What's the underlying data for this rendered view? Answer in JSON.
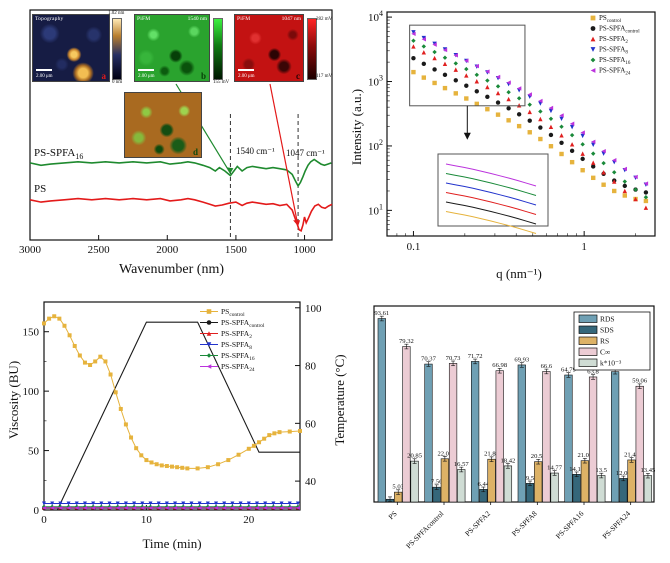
{
  "chart_data": [
    {
      "id": "ftir",
      "type": "line",
      "xlabel": "Wavenumber (nm)",
      "xticks": [
        3000,
        2500,
        2000,
        1500,
        1000
      ],
      "xlim": [
        3000,
        800
      ],
      "grid": false,
      "dashed_lines_at": [
        1540,
        1047
      ],
      "annotations": [
        {
          "text": "1540 cm⁻¹",
          "x": 1560,
          "anchor": "start"
        },
        {
          "text": "1047 cm⁻¹",
          "x": 1060,
          "anchor": "start"
        }
      ],
      "series": [
        {
          "name": "PS-SPFA16",
          "label_base": "PS-SPFA",
          "label_sub": "16",
          "color": "#1f8a2f",
          "points": [
            [
              3000,
              0.335
            ],
            [
              2920,
              0.325
            ],
            [
              2850,
              0.33
            ],
            [
              2750,
              0.335
            ],
            [
              2650,
              0.34
            ],
            [
              2550,
              0.335
            ],
            [
              2450,
              0.34
            ],
            [
              2350,
              0.335
            ],
            [
              2250,
              0.34
            ],
            [
              2150,
              0.335
            ],
            [
              2050,
              0.34
            ],
            [
              1980,
              0.33
            ],
            [
              1900,
              0.335
            ],
            [
              1850,
              0.34
            ],
            [
              1800,
              0.335
            ],
            [
              1740,
              0.325
            ],
            [
              1690,
              0.315
            ],
            [
              1650,
              0.3
            ],
            [
              1620,
              0.315
            ],
            [
              1580,
              0.3
            ],
            [
              1540,
              0.28
            ],
            [
              1515,
              0.3
            ],
            [
              1490,
              0.32
            ],
            [
              1455,
              0.3
            ],
            [
              1420,
              0.315
            ],
            [
              1380,
              0.32
            ],
            [
              1330,
              0.315
            ],
            [
              1280,
              0.31
            ],
            [
              1230,
              0.315
            ],
            [
              1180,
              0.31
            ],
            [
              1130,
              0.305
            ],
            [
              1090,
              0.285
            ],
            [
              1065,
              0.255
            ],
            [
              1047,
              0.235
            ],
            [
              1030,
              0.25
            ],
            [
              1012,
              0.275
            ],
            [
              995,
              0.3
            ],
            [
              975,
              0.325
            ],
            [
              955,
              0.34
            ],
            [
              930,
              0.35
            ],
            [
              905,
              0.34
            ],
            [
              880,
              0.33
            ],
            [
              855,
              0.325
            ],
            [
              830,
              0.33
            ],
            [
              805,
              0.335
            ]
          ]
        },
        {
          "name": "PS",
          "label_base": "PS",
          "label_sub": "",
          "color": "#e31a1a",
          "points": [
            [
              3000,
              0.175
            ],
            [
              2920,
              0.165
            ],
            [
              2850,
              0.17
            ],
            [
              2750,
              0.175
            ],
            [
              2650,
              0.18
            ],
            [
              2550,
              0.175
            ],
            [
              2450,
              0.18
            ],
            [
              2350,
              0.175
            ],
            [
              2250,
              0.18
            ],
            [
              2150,
              0.175
            ],
            [
              2050,
              0.18
            ],
            [
              1980,
              0.17
            ],
            [
              1900,
              0.175
            ],
            [
              1850,
              0.18
            ],
            [
              1800,
              0.175
            ],
            [
              1740,
              0.165
            ],
            [
              1690,
              0.155
            ],
            [
              1650,
              0.148
            ],
            [
              1600,
              0.152
            ],
            [
              1550,
              0.16
            ],
            [
              1500,
              0.165
            ],
            [
              1455,
              0.15
            ],
            [
              1420,
              0.16
            ],
            [
              1380,
              0.165
            ],
            [
              1330,
              0.16
            ],
            [
              1280,
              0.155
            ],
            [
              1230,
              0.158
            ],
            [
              1180,
              0.15
            ],
            [
              1130,
              0.155
            ],
            [
              1090,
              0.13
            ],
            [
              1060,
              0.08
            ],
            [
              1040,
              0.045
            ],
            [
              1025,
              0.04
            ],
            [
              1012,
              0.065
            ],
            [
              1000,
              0.1
            ],
            [
              988,
              0.075
            ],
            [
              972,
              0.095
            ],
            [
              950,
              0.125
            ],
            [
              925,
              0.148
            ],
            [
              900,
              0.155
            ],
            [
              875,
              0.142
            ],
            [
              850,
              0.138
            ],
            [
              825,
              0.148
            ],
            [
              800,
              0.155
            ]
          ]
        }
      ],
      "insets": {
        "a": {
          "title": "Topography",
          "corner": "",
          "scale": "2.00 μm",
          "cbar_top": "1.02 nm",
          "cbar_bottom": "0 nm",
          "letter": "a"
        },
        "b": {
          "title": "PiFM",
          "corner": "1540 nm",
          "scale": "2.00 μm",
          "cbar_top": "",
          "cbar_bottom": "155 mV",
          "letter": "b"
        },
        "c": {
          "title": "PiFM",
          "corner": "1047 nm",
          "scale": "2.00 μm",
          "cbar_top": "282 mV",
          "cbar_bottom": "117 mV",
          "letter": "c"
        },
        "d": {
          "title": "",
          "corner": "",
          "scale": "",
          "cbar_top": "",
          "cbar_bottom": "",
          "letter": "d"
        }
      }
    },
    {
      "id": "saxs",
      "type": "scatter",
      "xlabel": "q (nm⁻¹)",
      "ylabel": "Intensity (a.u.)",
      "xscale": "log",
      "yscale": "log",
      "xlim": [
        0.07,
        2.6
      ],
      "ylim": [
        4,
        12000
      ],
      "xticks": [
        0.1,
        1
      ],
      "yticks": [
        10,
        100,
        1000,
        10000
      ],
      "x": [
        0.1,
        0.115,
        0.133,
        0.153,
        0.177,
        0.204,
        0.235,
        0.271,
        0.313,
        0.361,
        0.416,
        0.48,
        0.554,
        0.639,
        0.737,
        0.85,
        0.98,
        1.13,
        1.3,
        1.5,
        1.73,
        2.0,
        2.3
      ],
      "series": [
        {
          "name": "PScontrol",
          "label_base": "PS",
          "label_sub": "control",
          "color": "#e6b33d",
          "marker": "square",
          "values": [
            1400,
            1150,
            950,
            790,
            655,
            545,
            450,
            372,
            306,
            250,
            203,
            163,
            128,
            99,
            75,
            56,
            42,
            32,
            25,
            20,
            17,
            15,
            14
          ]
        },
        {
          "name": "PS-SPFAcontrol",
          "label_base": "PS-SPFA",
          "label_sub": "control",
          "color": "#1a1a1a",
          "marker": "circle",
          "values": [
            2300,
            1880,
            1540,
            1270,
            1045,
            860,
            705,
            578,
            472,
            384,
            310,
            247,
            193,
            148,
            112,
            84,
            63,
            48,
            37,
            29,
            24,
            21,
            19
          ]
        },
        {
          "name": "PS-SPFA2",
          "label_base": "PS-SPFA",
          "label_sub": "2",
          "color": "#e02020",
          "marker": "triangle-up",
          "values": [
            3500,
            2840,
            2310,
            1880,
            1530,
            1245,
            1010,
            820,
            663,
            534,
            427,
            338,
            262,
            198,
            146,
            106,
            76,
            55,
            39,
            28,
            20,
            15,
            11
          ]
        },
        {
          "name": "PS-SPFA8",
          "label_base": "PS-SPFA",
          "label_sub": "8",
          "color": "#2233cc",
          "marker": "triangle-down",
          "values": [
            5800,
            4720,
            3850,
            3140,
            2560,
            2090,
            1700,
            1385,
            1125,
            910,
            731,
            581,
            455,
            350,
            264,
            196,
            143,
            104,
            76,
            56,
            42,
            32,
            25
          ]
        },
        {
          "name": "PS-SPFA16",
          "label_base": "PS-SPFA",
          "label_sub": "16",
          "color": "#1a8a3a",
          "marker": "diamond",
          "values": [
            4300,
            3510,
            2870,
            2340,
            1910,
            1560,
            1270,
            1035,
            842,
            682,
            549,
            437,
            343,
            264,
            199,
            147,
            106,
            76,
            54,
            39,
            28,
            21,
            16
          ]
        },
        {
          "name": "PS-SPFA24",
          "label_base": "PS-SPFA",
          "label_sub": "24",
          "color": "#bb33dd",
          "marker": "triangle-left",
          "values": [
            5500,
            4530,
            3740,
            3090,
            2550,
            2105,
            1735,
            1430,
            1175,
            962,
            782,
            629,
            499,
            389,
            297,
            221,
            161,
            116,
            83,
            60,
            44,
            33,
            26
          ]
        }
      ],
      "zoom_box_data_region": {
        "q": [
          0.095,
          0.45
        ],
        "I": [
          420,
          7500
        ]
      },
      "inset_line_order": [
        "PS-SPFA24",
        "PS-SPFA16",
        "PS-SPFA8",
        "PS-SPFA2",
        "PS-SPFAcontrol",
        "PScontrol"
      ]
    },
    {
      "id": "viscosity",
      "type": "line",
      "xlabel": "Time (min)",
      "ylabel": "Viscosity (BU)",
      "ylabel_right": "Temperature (°C)",
      "xlim": [
        0,
        25
      ],
      "ylim": [
        0,
        175
      ],
      "ylim_right": [
        30,
        102
      ],
      "xticks": [
        0,
        10,
        20
      ],
      "yticks": [
        0,
        50,
        100,
        150
      ],
      "yticks_right": [
        40,
        60,
        80,
        100
      ],
      "series": [
        {
          "name": "PScontrol",
          "label_base": "PS",
          "label_sub": "control",
          "color": "#e6b33d",
          "marker": "square",
          "points": [
            [
              0,
              157
            ],
            [
              0.5,
              161
            ],
            [
              1,
              163
            ],
            [
              1.5,
              161
            ],
            [
              2,
              155
            ],
            [
              2.5,
              147
            ],
            [
              3,
              138
            ],
            [
              3.5,
              130
            ],
            [
              4,
              124
            ],
            [
              4.5,
              122
            ],
            [
              5,
              125
            ],
            [
              5.5,
              129
            ],
            [
              6,
              125
            ],
            [
              6.5,
              114
            ],
            [
              7,
              99
            ],
            [
              7.5,
              85
            ],
            [
              8,
              72
            ],
            [
              8.5,
              61
            ],
            [
              9,
              52
            ],
            [
              9.5,
              46
            ],
            [
              10,
              42
            ],
            [
              10.5,
              40
            ],
            [
              11,
              38.5
            ],
            [
              11.5,
              37.5
            ],
            [
              12,
              37
            ],
            [
              12.5,
              36.5
            ],
            [
              13,
              36
            ],
            [
              13.5,
              35.5
            ],
            [
              14,
              35
            ],
            [
              15,
              35
            ],
            [
              16,
              36
            ],
            [
              17,
              38.5
            ],
            [
              18,
              42
            ],
            [
              19,
              46.5
            ],
            [
              20,
              51.5
            ],
            [
              20.5,
              54
            ],
            [
              21,
              57
            ],
            [
              21.5,
              60
            ],
            [
              22,
              63
            ],
            [
              22.5,
              64.5
            ],
            [
              23,
              65.5
            ],
            [
              24,
              66
            ],
            [
              25,
              66.5
            ]
          ]
        },
        {
          "name": "PS-SPFAcontrol",
          "label_base": "PS-SPFA",
          "label_sub": "control",
          "color": "#1a1a1a",
          "marker": "circle",
          "const_value": 1.5
        },
        {
          "name": "PS-SPFA2",
          "label_base": "PS-SPFA",
          "label_sub": "2",
          "color": "#e02020",
          "marker": "triangle-up",
          "const_value": 2.2
        },
        {
          "name": "PS-SPFA8",
          "label_base": "PS-SPFA",
          "label_sub": "8",
          "color": "#2233cc",
          "marker": "triangle-down",
          "const_value": 5.5
        },
        {
          "name": "PS-SPFA16",
          "label_base": "PS-SPFA",
          "label_sub": "16",
          "color": "#1a8a3a",
          "marker": "diamond",
          "const_value": 2.8
        },
        {
          "name": "PS-SPFA24",
          "label_base": "PS-SPFA",
          "label_sub": "24",
          "color": "#bb33dd",
          "marker": "triangle-left",
          "const_value": 1.8
        }
      ],
      "temperature_profile": {
        "color": "#1a1a1a",
        "points": [
          [
            1.3,
            30
          ],
          [
            10,
            95
          ],
          [
            15,
            95
          ],
          [
            21,
            50
          ],
          [
            25,
            50
          ]
        ]
      }
    },
    {
      "id": "digestibility",
      "type": "bar",
      "categories": [
        "PS",
        "PS-SPFAcontrol",
        "PS-SPFA2",
        "PS-SPFA8",
        "PS-SPFA16",
        "PS-SPFA24"
      ],
      "ylim": [
        0,
        100
      ],
      "error_bar": 1.2,
      "series": [
        {
          "name": "RDS",
          "color": "#6fa0b4",
          "values": [
            93.61,
            70.37,
            71.72,
            69.93,
            64.79,
            66.5
          ],
          "labels": [
            "93.61",
            "70.37",
            "71.72",
            "69.93",
            "64.79",
            "66.5"
          ]
        },
        {
          "name": "SDS",
          "color": "#35677a",
          "values": [
            1.4,
            7.56,
            6.44,
            9.5,
            14.12,
            12.03
          ],
          "labels": [
            "",
            "7.56",
            "6.44",
            "9.5",
            "14.12",
            "12.03"
          ]
        },
        {
          "name": "RS",
          "color": "#ddb266",
          "values": [
            5.03,
            22.05,
            21.83,
            20.56,
            21.08,
            21.45
          ],
          "labels": [
            "5.03",
            "22.05",
            "21.83",
            "20.56",
            "21.08",
            "21.45"
          ]
        },
        {
          "name": "C∞",
          "color": "#ecccd4",
          "values": [
            79.32,
            70.73,
            66.98,
            66.6,
            63.8,
            59.06
          ],
          "labels": [
            "79.32",
            "70.73",
            "66.98",
            "66.6",
            "63.8",
            "59.06"
          ]
        },
        {
          "name": "k*10⁻³",
          "color": "#cfdcd4",
          "values": [
            20.85,
            16.57,
            18.42,
            14.77,
            13.5,
            13.45
          ],
          "labels": [
            "20.85",
            "16.57",
            "18.42",
            "14.77",
            "13.5",
            "13.45"
          ]
        }
      ]
    }
  ]
}
